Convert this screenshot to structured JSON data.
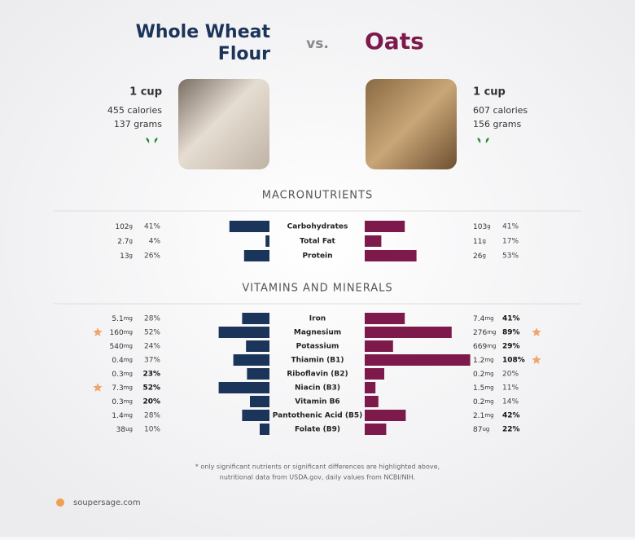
{
  "header": {
    "left": {
      "name": [
        "Whole Wheat",
        "Flour"
      ],
      "serving": "1 cup",
      "calories": "455 calories",
      "grams": "137 grams"
    },
    "vs": "vs.",
    "right": {
      "name": [
        "Oats"
      ],
      "serving": "1 cup",
      "calories": "607 calories",
      "grams": "156 grams"
    }
  },
  "colors": {
    "left": "#1b3459",
    "right": "#7d1a4b"
  },
  "sections": [
    {
      "title": "MACRONUTRIENTS",
      "rows": [
        {
          "name": "Carbohydrates",
          "left": {
            "amount": "102",
            "unit": "g",
            "dv": 41,
            "dv_label": "41%",
            "bold": false,
            "star": false
          },
          "right": {
            "amount": "103",
            "unit": "g",
            "dv": 41,
            "dv_label": "41%",
            "bold": false,
            "star": false
          }
        },
        {
          "name": "Total Fat",
          "left": {
            "amount": "2.7",
            "unit": "g",
            "dv": 4,
            "dv_label": "4%",
            "bold": false,
            "star": false
          },
          "right": {
            "amount": "11",
            "unit": "g",
            "dv": 17,
            "dv_label": "17%",
            "bold": false,
            "star": false
          }
        },
        {
          "name": "Protein",
          "left": {
            "amount": "13",
            "unit": "g",
            "dv": 26,
            "dv_label": "26%",
            "bold": false,
            "star": false
          },
          "right": {
            "amount": "26",
            "unit": "g",
            "dv": 53,
            "dv_label": "53%",
            "bold": false,
            "star": false
          }
        }
      ]
    },
    {
      "title": "VITAMINS AND MINERALS",
      "rows": [
        {
          "name": "Iron",
          "left": {
            "amount": "5.1",
            "unit": "mg",
            "dv": 28,
            "dv_label": "28%",
            "bold": false,
            "star": false
          },
          "right": {
            "amount": "7.4",
            "unit": "mg",
            "dv": 41,
            "dv_label": "41%",
            "bold": true,
            "star": false
          }
        },
        {
          "name": "Magnesium",
          "left": {
            "amount": "160",
            "unit": "mg",
            "dv": 52,
            "dv_label": "52%",
            "bold": false,
            "star": true
          },
          "right": {
            "amount": "276",
            "unit": "mg",
            "dv": 89,
            "dv_label": "89%",
            "bold": true,
            "star": true
          }
        },
        {
          "name": "Potassium",
          "left": {
            "amount": "540",
            "unit": "mg",
            "dv": 24,
            "dv_label": "24%",
            "bold": false,
            "star": false
          },
          "right": {
            "amount": "669",
            "unit": "mg",
            "dv": 29,
            "dv_label": "29%",
            "bold": true,
            "star": false
          }
        },
        {
          "name": "Thiamin (B1)",
          "left": {
            "amount": "0.4",
            "unit": "mg",
            "dv": 37,
            "dv_label": "37%",
            "bold": false,
            "star": false
          },
          "right": {
            "amount": "1.2",
            "unit": "mg",
            "dv": 108,
            "dv_label": "108%",
            "bold": true,
            "star": true
          }
        },
        {
          "name": "Riboflavin (B2)",
          "left": {
            "amount": "0.3",
            "unit": "mg",
            "dv": 23,
            "dv_label": "23%",
            "bold": true,
            "star": false
          },
          "right": {
            "amount": "0.2",
            "unit": "mg",
            "dv": 20,
            "dv_label": "20%",
            "bold": false,
            "star": false
          }
        },
        {
          "name": "Niacin (B3)",
          "left": {
            "amount": "7.3",
            "unit": "mg",
            "dv": 52,
            "dv_label": "52%",
            "bold": true,
            "star": true
          },
          "right": {
            "amount": "1.5",
            "unit": "mg",
            "dv": 11,
            "dv_label": "11%",
            "bold": false,
            "star": false
          }
        },
        {
          "name": "Vitamin B6",
          "left": {
            "amount": "0.3",
            "unit": "mg",
            "dv": 20,
            "dv_label": "20%",
            "bold": true,
            "star": false
          },
          "right": {
            "amount": "0.2",
            "unit": "mg",
            "dv": 14,
            "dv_label": "14%",
            "bold": false,
            "star": false
          }
        },
        {
          "name": "Pantothenic Acid (B5)",
          "left": {
            "amount": "1.4",
            "unit": "mg",
            "dv": 28,
            "dv_label": "28%",
            "bold": false,
            "star": false
          },
          "right": {
            "amount": "2.1",
            "unit": "mg",
            "dv": 42,
            "dv_label": "42%",
            "bold": true,
            "star": false
          }
        },
        {
          "name": "Folate (B9)",
          "left": {
            "amount": "38",
            "unit": "ug",
            "dv": 10,
            "dv_label": "10%",
            "bold": false,
            "star": false
          },
          "right": {
            "amount": "87",
            "unit": "ug",
            "dv": 22,
            "dv_label": "22%",
            "bold": true,
            "star": false
          }
        }
      ]
    }
  ],
  "footnote": [
    "* only significant nutrients or significant differences are highlighted above,",
    "nutritional data from USDA.gov, daily values from NCBI/NIH."
  ],
  "brand": "soupersage.com"
}
